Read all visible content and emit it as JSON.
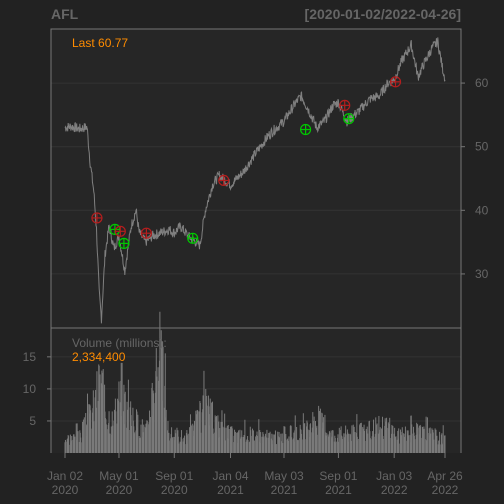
{
  "chart_data": {
    "type": "line",
    "title": "AFL",
    "date_range_label": "[2020-01-02/2022-04-26]",
    "last_label": "Last 60.77",
    "price_axis": {
      "ylim": [
        21.5,
        68.5
      ],
      "ticks": [
        "30",
        "40",
        "50",
        "60"
      ]
    },
    "volume_axis": {
      "label": "Volume (millions):",
      "last_value": "2,334,400",
      "ylim": [
        0,
        19.5
      ],
      "ticks": [
        "5",
        "10",
        "15"
      ]
    },
    "x_ticks": [
      {
        "date": "2020-01-02",
        "line1": "Jan 02",
        "line2": "2020"
      },
      {
        "date": "2020-05-01",
        "line1": "May 01",
        "line2": "2020"
      },
      {
        "date": "2020-09-01",
        "line1": "Sep 01",
        "line2": "2020"
      },
      {
        "date": "2021-01-04",
        "line1": "Jan 04",
        "line2": "2021"
      },
      {
        "date": "2021-05-03",
        "line1": "May 03",
        "line2": "2021"
      },
      {
        "date": "2021-09-01",
        "line1": "Sep 01",
        "line2": "2021"
      },
      {
        "date": "2022-01-03",
        "line1": "Jan 03",
        "line2": "2022"
      },
      {
        "date": "2022-04-26",
        "line1": "Apr 26",
        "line2": "2022"
      }
    ],
    "price_series": {
      "name": "",
      "points": [
        {
          "date": "2020-01-02",
          "value": 53.0
        },
        {
          "date": "2020-01-15",
          "value": 53.2
        },
        {
          "date": "2020-02-03",
          "value": 52.8
        },
        {
          "date": "2020-02-20",
          "value": 53.1
        },
        {
          "date": "2020-02-27",
          "value": 47.5
        },
        {
          "date": "2020-03-06",
          "value": 43.0
        },
        {
          "date": "2020-03-12",
          "value": 37.0
        },
        {
          "date": "2020-03-18",
          "value": 27.0
        },
        {
          "date": "2020-03-23",
          "value": 23.0
        },
        {
          "date": "2020-03-31",
          "value": 33.0
        },
        {
          "date": "2020-04-09",
          "value": 37.5
        },
        {
          "date": "2020-04-20",
          "value": 34.0
        },
        {
          "date": "2020-05-01",
          "value": 36.0
        },
        {
          "date": "2020-05-14",
          "value": 30.5
        },
        {
          "date": "2020-05-28",
          "value": 37.5
        },
        {
          "date": "2020-06-08",
          "value": 40.0
        },
        {
          "date": "2020-06-15",
          "value": 36.5
        },
        {
          "date": "2020-06-29",
          "value": 35.0
        },
        {
          "date": "2020-07-15",
          "value": 36.0
        },
        {
          "date": "2020-08-03",
          "value": 36.5
        },
        {
          "date": "2020-08-20",
          "value": 37.0
        },
        {
          "date": "2020-09-01",
          "value": 36.5
        },
        {
          "date": "2020-09-15",
          "value": 37.5
        },
        {
          "date": "2020-10-01",
          "value": 36.0
        },
        {
          "date": "2020-10-28",
          "value": 34.5
        },
        {
          "date": "2020-11-09",
          "value": 40.0
        },
        {
          "date": "2020-11-25",
          "value": 44.0
        },
        {
          "date": "2020-12-10",
          "value": 45.5
        },
        {
          "date": "2021-01-04",
          "value": 44.0
        },
        {
          "date": "2021-02-01",
          "value": 46.0
        },
        {
          "date": "2021-03-01",
          "value": 49.0
        },
        {
          "date": "2021-04-01",
          "value": 52.0
        },
        {
          "date": "2021-05-03",
          "value": 54.0
        },
        {
          "date": "2021-05-25",
          "value": 56.5
        },
        {
          "date": "2021-06-10",
          "value": 58.0
        },
        {
          "date": "2021-06-25",
          "value": 56.0
        },
        {
          "date": "2021-07-15",
          "value": 53.0
        },
        {
          "date": "2021-08-01",
          "value": 54.0
        },
        {
          "date": "2021-08-20",
          "value": 56.5
        },
        {
          "date": "2021-09-01",
          "value": 57.0
        },
        {
          "date": "2021-09-20",
          "value": 54.0
        },
        {
          "date": "2021-10-15",
          "value": 55.5
        },
        {
          "date": "2021-11-10",
          "value": 57.5
        },
        {
          "date": "2021-12-01",
          "value": 58.0
        },
        {
          "date": "2021-12-20",
          "value": 60.0
        },
        {
          "date": "2022-01-03",
          "value": 60.5
        },
        {
          "date": "2022-01-20",
          "value": 63.5
        },
        {
          "date": "2022-02-10",
          "value": 66.0
        },
        {
          "date": "2022-02-25",
          "value": 61.0
        },
        {
          "date": "2022-03-10",
          "value": 63.0
        },
        {
          "date": "2022-03-28",
          "value": 65.5
        },
        {
          "date": "2022-04-10",
          "value": 66.5
        },
        {
          "date": "2022-04-20",
          "value": 62.5
        },
        {
          "date": "2022-04-26",
          "value": 60.77
        }
      ]
    },
    "markers": [
      {
        "date": "2020-03-13",
        "value": 38.8,
        "kind": "sell"
      },
      {
        "date": "2020-04-22",
        "value": 37.0,
        "kind": "buy"
      },
      {
        "date": "2020-05-04",
        "value": 36.7,
        "kind": "sell"
      },
      {
        "date": "2020-05-12",
        "value": 34.8,
        "kind": "buy"
      },
      {
        "date": "2020-07-01",
        "value": 36.4,
        "kind": "sell"
      },
      {
        "date": "2020-10-12",
        "value": 35.6,
        "kind": "buy"
      },
      {
        "date": "2020-12-20",
        "value": 44.7,
        "kind": "sell"
      },
      {
        "date": "2021-06-20",
        "value": 52.7,
        "kind": "buy"
      },
      {
        "date": "2021-09-15",
        "value": 56.5,
        "kind": "sell"
      },
      {
        "date": "2021-09-24",
        "value": 54.4,
        "kind": "buy"
      },
      {
        "date": "2022-01-06",
        "value": 60.2,
        "kind": "sell"
      }
    ],
    "volume_series": {
      "name": "",
      "points": [
        {
          "date": "2020-01-02",
          "value": 2.4
        },
        {
          "date": "2020-02-03",
          "value": 2.6
        },
        {
          "date": "2020-02-27",
          "value": 6.0
        },
        {
          "date": "2020-03-10",
          "value": 8.5
        },
        {
          "date": "2020-03-20",
          "value": 13.0
        },
        {
          "date": "2020-04-01",
          "value": 7.0
        },
        {
          "date": "2020-04-20",
          "value": 5.0
        },
        {
          "date": "2020-05-07",
          "value": 11.0
        },
        {
          "date": "2020-05-20",
          "value": 6.5
        },
        {
          "date": "2020-06-10",
          "value": 5.0
        },
        {
          "date": "2020-07-01",
          "value": 3.5
        },
        {
          "date": "2020-07-30",
          "value": 17.8
        },
        {
          "date": "2020-08-20",
          "value": 3.0
        },
        {
          "date": "2020-10-01",
          "value": 2.6
        },
        {
          "date": "2020-11-09",
          "value": 7.5
        },
        {
          "date": "2020-12-18",
          "value": 3.5
        },
        {
          "date": "2021-01-20",
          "value": 2.8
        },
        {
          "date": "2021-03-01",
          "value": 3.0
        },
        {
          "date": "2021-04-20",
          "value": 2.5
        },
        {
          "date": "2021-05-03",
          "value": 3.0
        },
        {
          "date": "2021-06-20",
          "value": 3.5
        },
        {
          "date": "2021-07-20",
          "value": 5.5
        },
        {
          "date": "2021-08-15",
          "value": 3.0
        },
        {
          "date": "2021-09-15",
          "value": 3.2
        },
        {
          "date": "2021-11-01",
          "value": 3.5
        },
        {
          "date": "2021-12-17",
          "value": 4.5
        },
        {
          "date": "2022-01-15",
          "value": 2.8
        },
        {
          "date": "2022-02-25",
          "value": 3.5
        },
        {
          "date": "2022-04-26",
          "value": 2.33
        }
      ]
    },
    "colors": {
      "background": "#222222",
      "panel": "#262626",
      "frame": "#777777",
      "grid": "#333333",
      "text": "#666666",
      "line": "#808080",
      "last": "#FF8C00",
      "buy": "#00C800",
      "sell": "#B41E1E",
      "volume": "#7A7A7A"
    },
    "grid": true
  }
}
